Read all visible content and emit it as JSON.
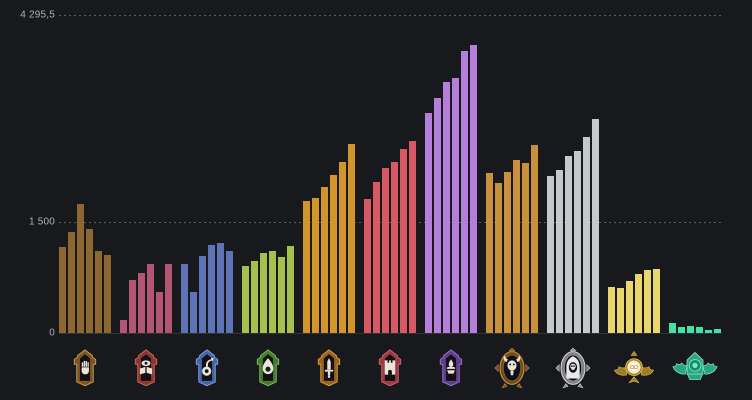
{
  "window": {
    "background": "#17191d"
  },
  "chart_data": {
    "type": "bar",
    "ylim": [
      0,
      4295.5
    ],
    "grid": "horizontal",
    "legend": "none",
    "bars_per_group": 6,
    "y_ticks": [
      {
        "label": "4 295,5",
        "value": 4295.5,
        "line": "dotted"
      },
      {
        "label": "1 500",
        "value": 1500,
        "line": "dotted"
      },
      {
        "label": "0",
        "value": 0,
        "line": "solid"
      }
    ],
    "x_axis": {
      "style": "rank-badge-icons"
    },
    "groups": [
      {
        "rank": "initiate",
        "icon": "initiate-rank-badge-icon",
        "bar_color": "#8d6731",
        "badge_style": {
          "type": "shield",
          "frame": "#7a5524",
          "light": "#cfa052",
          "glyph": "hand"
        },
        "values": [
          1165,
          1370,
          1740,
          1405,
          1110,
          1055
        ]
      },
      {
        "rank": "seeker",
        "icon": "seeker-rank-badge-icon",
        "bar_color": "#b25674",
        "badge_style": {
          "type": "shield",
          "frame": "#8f3434",
          "light": "#d06a55",
          "glyph": "eye-books"
        },
        "values": [
          170,
          715,
          805,
          930,
          555,
          930
        ]
      },
      {
        "rank": "alchemist",
        "icon": "alchemist-rank-badge-icon",
        "bar_color": "#5d73b5",
        "badge_style": {
          "type": "shield",
          "frame": "#3d66ae",
          "light": "#88a6e0",
          "glyph": "retort"
        },
        "values": [
          930,
          560,
          1045,
          1190,
          1210,
          1110
        ]
      },
      {
        "rank": "arcanist",
        "icon": "arcanist-rank-badge-icon",
        "bar_color": "#a3c14c",
        "badge_style": {
          "type": "shield",
          "frame": "#3f7d2c",
          "light": "#7fc055",
          "glyph": "wisp"
        },
        "values": [
          910,
          975,
          1075,
          1110,
          1030,
          1180
        ]
      },
      {
        "rank": "ritualist",
        "icon": "ritualist-rank-badge-icon",
        "bar_color": "#d1952a",
        "badge_style": {
          "type": "shield",
          "frame": "#9c6018",
          "light": "#d9a443",
          "glyph": "dagger"
        },
        "values": [
          1785,
          1820,
          1975,
          2135,
          2315,
          2550
        ]
      },
      {
        "rank": "emissary",
        "icon": "emissary-rank-badge-icon",
        "bar_color": "#d65a64",
        "badge_style": {
          "type": "shield",
          "frame": "#9c3840",
          "light": "#d6636d",
          "glyph": "gate"
        },
        "values": [
          1810,
          2045,
          2225,
          2315,
          2480,
          2600
        ]
      },
      {
        "rank": "archon",
        "icon": "archon-rank-badge-icon",
        "bar_color": "#b57edb",
        "badge_style": {
          "type": "shield",
          "frame": "#5f3d8f",
          "light": "#a06fd6",
          "glyph": "brazier"
        },
        "values": [
          2970,
          3170,
          3395,
          3440,
          3815,
          3890
        ]
      },
      {
        "rank": "oracle",
        "icon": "oracle-rank-badge-icon",
        "bar_color": "#c9913e",
        "badge_style": {
          "type": "medal",
          "frame": "#6f4c20",
          "light": "#c69348",
          "glyph": "ram-skull"
        },
        "values": [
          2160,
          2020,
          2180,
          2340,
          2290,
          2540
        ]
      },
      {
        "rank": "phantom",
        "icon": "phantom-rank-badge-icon",
        "bar_color": "#c6c8ca",
        "badge_style": {
          "type": "medal",
          "frame": "#7e8287",
          "light": "#d3d6da",
          "glyph": "hooded-skull"
        },
        "values": [
          2115,
          2205,
          2390,
          2460,
          2645,
          2890
        ]
      },
      {
        "rank": "ascendant",
        "icon": "ascendant-rank-badge-icon",
        "bar_color": "#e9d76d",
        "badge_style": {
          "type": "ascendant",
          "frame": "#a07c28",
          "light": "#e5c150",
          "glyph": "halo-core"
        },
        "values": [
          620,
          605,
          705,
          795,
          850,
          860
        ]
      },
      {
        "rank": "eternus",
        "icon": "eternus-rank-badge-icon",
        "bar_color": "#44e1a6",
        "badge_style": {
          "type": "eternus",
          "frame": "#2ea380",
          "light": "#74ecc4",
          "glyph": "winged-gem"
        },
        "values": [
          140,
          80,
          95,
          85,
          42,
          50
        ]
      }
    ]
  }
}
